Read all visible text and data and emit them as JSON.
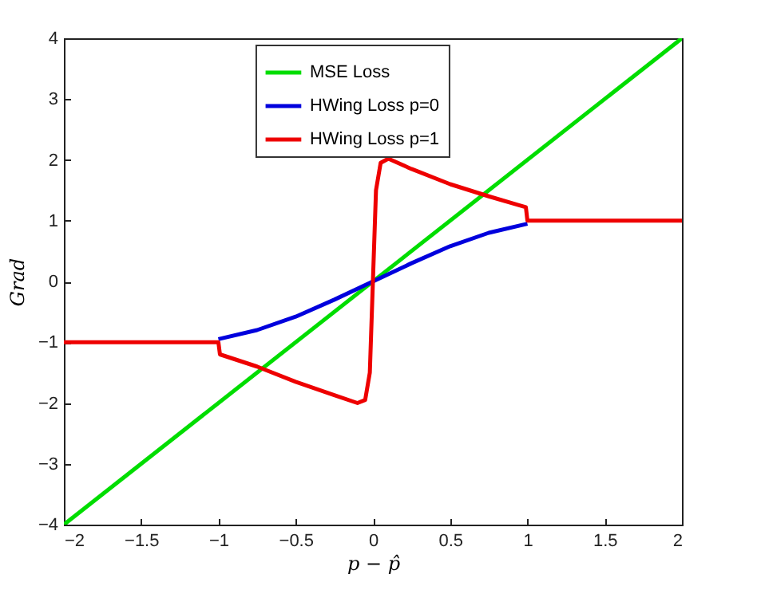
{
  "chart_data": {
    "type": "line",
    "xlabel": "p − p̂",
    "ylabel": "Grad",
    "xlim": [
      -2,
      2
    ],
    "ylim": [
      -4,
      4
    ],
    "xticks": [
      -2,
      -1.5,
      -1,
      -0.5,
      0,
      0.5,
      1,
      1.5,
      2
    ],
    "yticks": [
      -4,
      -3,
      -2,
      -1,
      0,
      1,
      2,
      3,
      4
    ],
    "grid": false,
    "legend": "top",
    "line_style": "solid",
    "marker": "none",
    "series": [
      {
        "name": "MSE Loss",
        "color": "#00dd00",
        "x": [
          -2,
          2
        ],
        "values": [
          -4,
          4
        ]
      },
      {
        "name": "HWing Loss p=0",
        "color": "#0000dd",
        "x": [
          -1,
          -0.75,
          -0.5,
          -0.25,
          0,
          0.25,
          0.5,
          0.75,
          1
        ],
        "values": [
          -0.95,
          -0.8,
          -0.58,
          -0.3,
          0,
          0.3,
          0.58,
          0.8,
          0.95
        ]
      },
      {
        "name": "HWing Loss p=1",
        "color": "#ee0000",
        "x": [
          -2,
          -1,
          -0.99,
          -0.75,
          -0.5,
          -0.25,
          -0.1,
          -0.05,
          -0.02,
          0,
          0.02,
          0.05,
          0.1,
          0.25,
          0.5,
          0.75,
          0.99,
          1,
          2
        ],
        "values": [
          -1,
          -1,
          -1.2,
          -1.4,
          -1.65,
          -1.87,
          -2,
          -1.95,
          -1.5,
          0,
          1.5,
          1.95,
          2.02,
          1.85,
          1.6,
          1.4,
          1.22,
          1,
          1
        ]
      }
    ]
  }
}
